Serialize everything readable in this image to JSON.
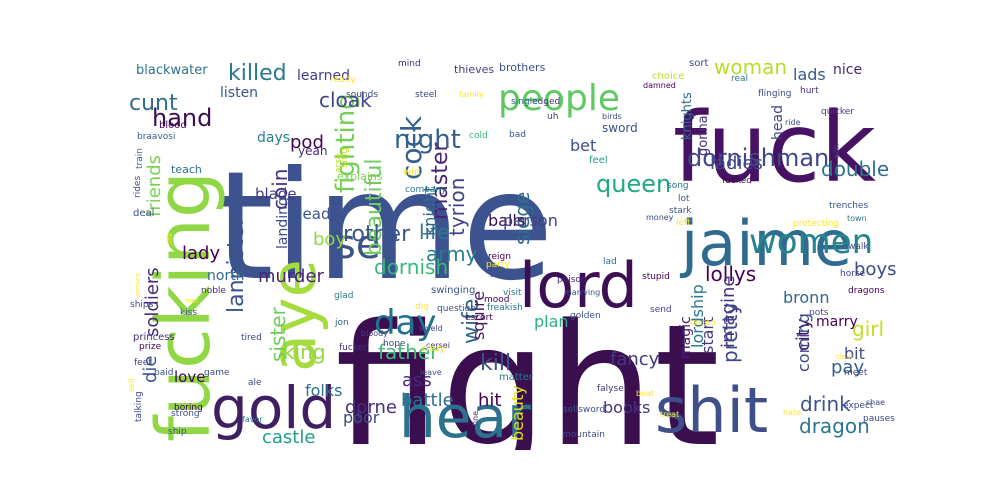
{
  "words": [
    {
      "text": "fight",
      "color": "#3b0f4f"
    },
    {
      "text": "time",
      "color": "#3d5390"
    },
    {
      "text": "fuck",
      "color": "#471164"
    },
    {
      "text": "jaime",
      "color": "#2f6b8e"
    },
    {
      "text": "fucking",
      "color": "#8fd744"
    },
    {
      "text": "lord",
      "color": "#3c0f55"
    },
    {
      "text": "shit",
      "color": "#3e4f8a"
    },
    {
      "text": "hear",
      "color": "#2c728e"
    },
    {
      "text": "aye",
      "color": "#a6db3d"
    },
    {
      "text": "gold",
      "color": "#3f1f62"
    },
    {
      "text": "people",
      "color": "#5ec962"
    },
    {
      "text": "women",
      "color": "#25858e"
    },
    {
      "text": "ser",
      "color": "#3b528b"
    },
    {
      "text": "day",
      "color": "#22718e"
    },
    {
      "text": "dornishman",
      "color": "#3f4788"
    },
    {
      "text": "fighting",
      "color": "#73d055"
    },
    {
      "text": "night",
      "color": "#34618d"
    },
    {
      "text": "cock",
      "color": "#35608d"
    },
    {
      "text": "master",
      "color": "#482475"
    },
    {
      "text": "beautiful",
      "color": "#6ccd5a"
    },
    {
      "text": "hand",
      "color": "#3b0f4f"
    },
    {
      "text": "killed",
      "color": "#2a788e"
    },
    {
      "text": "cunt",
      "color": "#2d6e8e"
    },
    {
      "text": "coin",
      "color": "#46327e"
    },
    {
      "text": "cloak",
      "color": "#414487"
    },
    {
      "text": "woman",
      "color": "#b5de2b"
    },
    {
      "text": "lads",
      "color": "#365c8d"
    },
    {
      "text": "queen",
      "color": "#22a884"
    },
    {
      "text": "double",
      "color": "#2c728e"
    },
    {
      "text": "ladies",
      "color": "#3f4889"
    },
    {
      "text": "friends",
      "color": "#7ad151"
    },
    {
      "text": "soldiers",
      "color": "#472a7a"
    },
    {
      "text": "lannister",
      "color": "#3b528b"
    },
    {
      "text": "sister",
      "color": "#6ccd5a"
    },
    {
      "text": "brother",
      "color": "#39568c"
    },
    {
      "text": "life",
      "color": "#2a788e"
    },
    {
      "text": "army",
      "color": "#287d8e"
    },
    {
      "text": "dornish",
      "color": "#35b779"
    },
    {
      "text": "wife",
      "color": "#31688e"
    },
    {
      "text": "tyrion",
      "color": "#414487"
    },
    {
      "text": "siege",
      "color": "#2d708e"
    },
    {
      "text": "lollys",
      "color": "#440154"
    },
    {
      "text": "boys",
      "color": "#3e4989"
    },
    {
      "text": "girl",
      "color": "#c2df23"
    },
    {
      "text": "imagine",
      "color": "#46307e"
    },
    {
      "text": "pretty",
      "color": "#3f4889"
    },
    {
      "text": "kill",
      "color": "#3b528b"
    },
    {
      "text": "father",
      "color": "#3fbc73"
    },
    {
      "text": "king",
      "color": "#8fd744"
    },
    {
      "text": "drink",
      "color": "#3a548c"
    },
    {
      "text": "dragon",
      "color": "#2a788e"
    },
    {
      "text": "castle",
      "color": "#1f9e89"
    },
    {
      "text": "battle",
      "color": "#2d708e"
    },
    {
      "text": "hit",
      "color": "#440154"
    },
    {
      "text": "dorne",
      "color": "#472d7b"
    },
    {
      "text": "fancy",
      "color": "#453781"
    },
    {
      "text": "pay",
      "color": "#355f8d"
    },
    {
      "text": "bit",
      "color": "#3e4a89"
    },
    {
      "text": "bet",
      "color": "#3d4e8a"
    },
    {
      "text": "knight",
      "color": "#31688e"
    },
    {
      "text": "murder",
      "color": "#482576"
    },
    {
      "text": "squire",
      "color": "#481769"
    },
    {
      "text": "lady",
      "color": "#440154"
    },
    {
      "text": "pod",
      "color": "#440154"
    },
    {
      "text": "boy",
      "color": "#8fd744"
    },
    {
      "text": "blade",
      "color": "#433d84"
    },
    {
      "text": "dead",
      "color": "#3a548c"
    },
    {
      "text": "balls",
      "color": "#3b0f4f"
    },
    {
      "text": "person",
      "color": "#433e85"
    },
    {
      "text": "plan",
      "color": "#29af7f"
    },
    {
      "text": "books",
      "color": "#46337e"
    },
    {
      "text": "beauty",
      "color": "#dde318"
    },
    {
      "text": "ass",
      "color": "#482878"
    },
    {
      "text": "poor",
      "color": "#3f4788"
    },
    {
      "text": "folks",
      "color": "#2e6d8e"
    },
    {
      "text": "die",
      "color": "#3b528b"
    },
    {
      "text": "love",
      "color": "#440154"
    },
    {
      "text": "north",
      "color": "#31688e"
    },
    {
      "text": "days",
      "color": "#277f8e"
    },
    {
      "text": "landing",
      "color": "#3e4989"
    },
    {
      "text": "learned",
      "color": "#433e85"
    },
    {
      "text": "listen",
      "color": "#3a548c"
    },
    {
      "text": "blackwater",
      "color": "#2c728e"
    },
    {
      "text": "city",
      "color": "#481467"
    },
    {
      "text": "coming",
      "color": "#3f4788"
    },
    {
      "text": "bronn",
      "color": "#31688e"
    },
    {
      "text": "start",
      "color": "#443983"
    },
    {
      "text": "lordship",
      "color": "#2a788e"
    },
    {
      "text": "magic",
      "color": "#482173"
    },
    {
      "text": "marry",
      "color": "#440154"
    },
    {
      "text": "nice",
      "color": "#482475"
    },
    {
      "text": "head",
      "color": "#3f4889"
    },
    {
      "text": "gonna",
      "color": "#472f7d"
    },
    {
      "text": "knights",
      "color": "#31688e"
    },
    {
      "text": "sword",
      "color": "#3b528b"
    },
    {
      "text": "thieves",
      "color": "#433e85"
    },
    {
      "text": "brothers",
      "color": "#3b528b"
    },
    {
      "text": "yeah",
      "color": "#482878"
    },
    {
      "text": "explains",
      "color": "#7ad151"
    },
    {
      "text": "sing",
      "color": "#c8e020"
    },
    {
      "text": "arse",
      "color": "#b5de2b"
    },
    {
      "text": "win",
      "color": "#fde725"
    },
    {
      "text": "teach",
      "color": "#2c728e"
    },
    {
      "text": "deal",
      "color": "#3b528b"
    },
    {
      "text": "blood",
      "color": "#440154"
    },
    {
      "text": "rides",
      "color": "#3e4989"
    },
    {
      "text": "braavosi",
      "color": "#365c8d"
    },
    {
      "text": "train",
      "color": "#31688e"
    },
    {
      "text": "mind",
      "color": "#472f7d"
    },
    {
      "text": "ready",
      "color": "#fde725"
    },
    {
      "text": "sounds",
      "color": "#3f4889"
    },
    {
      "text": "steel",
      "color": "#414487"
    },
    {
      "text": "family",
      "color": "#fde725"
    },
    {
      "text": "cold",
      "color": "#35b779"
    },
    {
      "text": "bad",
      "color": "#3a548c"
    },
    {
      "text": "uh",
      "color": "#443983"
    },
    {
      "text": "edged",
      "color": "#46337e"
    },
    {
      "text": "single",
      "color": "#31688e"
    },
    {
      "text": "sort",
      "color": "#3e4989"
    },
    {
      "text": "real",
      "color": "#2a788e"
    },
    {
      "text": "choice",
      "color": "#bddf26"
    },
    {
      "text": "flinging",
      "color": "#3f4788"
    },
    {
      "text": "hurt",
      "color": "#472d7b"
    },
    {
      "text": "birds",
      "color": "#3e4989"
    },
    {
      "text": "damned",
      "color": "#440154"
    },
    {
      "text": "party",
      "color": "#fde725"
    },
    {
      "text": "quicker",
      "color": "#46337e"
    },
    {
      "text": "company",
      "color": "#2a788e"
    },
    {
      "text": "feel",
      "color": "#1f9e89"
    },
    {
      "text": "song",
      "color": "#2c728e"
    },
    {
      "text": "fucked",
      "color": "#440154"
    },
    {
      "text": "lot",
      "color": "#39568c"
    },
    {
      "text": "stark",
      "color": "#3b528b"
    },
    {
      "text": "money",
      "color": "#3e4989"
    },
    {
      "text": "left",
      "color": "#fde725"
    },
    {
      "text": "protecting",
      "color": "#fde725"
    },
    {
      "text": "trenches",
      "color": "#3b528b"
    },
    {
      "text": "town",
      "color": "#2a788e"
    },
    {
      "text": "son",
      "color": "#433e85"
    },
    {
      "text": "ride",
      "color": "#3e4989"
    },
    {
      "text": "reign",
      "color": "#440154"
    },
    {
      "text": "axe",
      "color": "#3b528b"
    },
    {
      "text": "mood",
      "color": "#440154"
    },
    {
      "text": "visit",
      "color": "#2c728e"
    },
    {
      "text": "poison",
      "color": "#482878"
    },
    {
      "text": "lad",
      "color": "#31688e"
    },
    {
      "text": "walk",
      "color": "#3e4989"
    },
    {
      "text": "stupid",
      "color": "#440154"
    },
    {
      "text": "horse",
      "color": "#3f4788"
    },
    {
      "text": "marrying",
      "color": "#3b528b"
    },
    {
      "text": "ships",
      "color": "#3e4989"
    },
    {
      "text": "princess",
      "color": "#472f7d"
    },
    {
      "text": "noble",
      "color": "#482878"
    },
    {
      "text": "glad",
      "color": "#2a788e"
    },
    {
      "text": "kiss",
      "color": "#3b528b"
    },
    {
      "text": "tired",
      "color": "#3f4788"
    },
    {
      "text": "prize",
      "color": "#440154"
    },
    {
      "text": "ale",
      "color": "#3e4989"
    },
    {
      "text": "jon",
      "color": "#35608d"
    },
    {
      "text": "bloody",
      "color": "#443983"
    },
    {
      "text": "hope",
      "color": "#3f4788"
    },
    {
      "text": "dig",
      "color": "#fde725"
    },
    {
      "text": "swinging",
      "color": "#3b528b"
    },
    {
      "text": "cersei",
      "color": "#46337e"
    },
    {
      "text": "question",
      "color": "#3b528b"
    },
    {
      "text": "shield",
      "color": "#3f4788"
    },
    {
      "text": "crazy",
      "color": "#fde725"
    },
    {
      "text": "escort",
      "color": "#440154"
    },
    {
      "text": "freakish",
      "color": "#2a788e"
    },
    {
      "text": "golden",
      "color": "#3b528b"
    },
    {
      "text": "send",
      "color": "#433e85"
    },
    {
      "text": "tasted",
      "color": "#fde725"
    },
    {
      "text": "pots",
      "color": "#3e4989"
    },
    {
      "text": "dragons",
      "color": "#440154"
    },
    {
      "text": "feet",
      "color": "#3f4788"
    },
    {
      "text": "game",
      "color": "#3e4989"
    },
    {
      "text": "paid",
      "color": "#3b528b"
    },
    {
      "text": "fucker",
      "color": "#472f7d"
    },
    {
      "text": "leave",
      "color": "#3b528b"
    },
    {
      "text": "matter",
      "color": "#2a788e"
    },
    {
      "text": "falyse",
      "color": "#46337e"
    },
    {
      "text": "shae",
      "color": "#3e4989"
    },
    {
      "text": "meet",
      "color": "#3f4788"
    },
    {
      "text": "boring",
      "color": "#440154"
    },
    {
      "text": "strong",
      "color": "#3b528b"
    },
    {
      "text": "sell",
      "color": "#fde725"
    },
    {
      "text": "talking",
      "color": "#3e4989"
    },
    {
      "text": "ship",
      "color": "#3b528b"
    },
    {
      "text": "favor",
      "color": "#2a788e"
    },
    {
      "text": "live",
      "color": "#3f4788"
    },
    {
      "text": "fine",
      "color": "#472f7d"
    },
    {
      "text": "mountain",
      "color": "#3e4989"
    },
    {
      "text": "sellsword",
      "color": "#3b528b"
    },
    {
      "text": "beat",
      "color": "#fde725"
    },
    {
      "text": "treat",
      "color": "#fde725"
    },
    {
      "text": "hate",
      "color": "#fde725"
    },
    {
      "text": "expect",
      "color": "#3e4989"
    },
    {
      "text": "pauses",
      "color": "#3f4788"
    },
    {
      "text": "clean",
      "color": "#fde725"
    },
    {
      "text": "risk",
      "color": "#fde725"
    },
    {
      "text": "met",
      "color": "#fde725"
    },
    {
      "text": "armies",
      "color": "#fde725"
    }
  ]
}
